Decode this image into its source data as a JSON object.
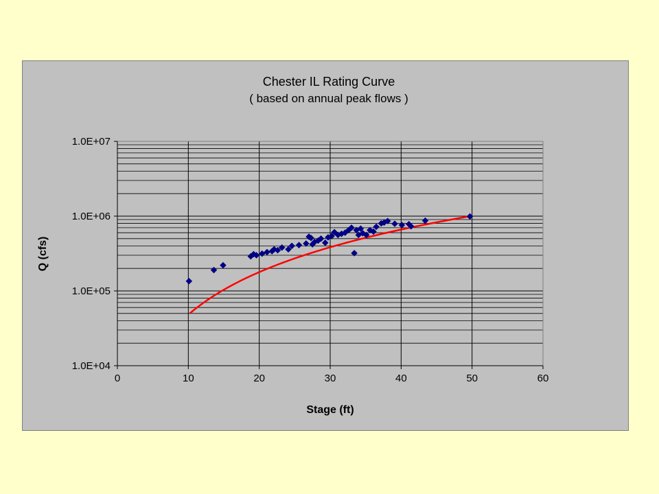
{
  "chart_data": {
    "type": "scatter",
    "title": "Chester IL Rating Curve",
    "subtitle": "( based on annual peak flows )",
    "xlabel": "Stage (ft)",
    "ylabel": "Q (cfs)",
    "xlim": [
      0,
      60
    ],
    "ylim": [
      10000,
      10000000
    ],
    "yscale": "log",
    "x_ticks": [
      0,
      10,
      20,
      30,
      40,
      50,
      60
    ],
    "x_tick_labels": [
      "0",
      "10",
      "20",
      "30",
      "40",
      "50",
      "60"
    ],
    "y_ticks": [
      10000,
      100000,
      1000000,
      10000000
    ],
    "y_tick_labels": [
      "1.0E+04",
      "1.0E+05",
      "1.0E+06",
      "1.0E+07"
    ],
    "grid": true,
    "legend": "none",
    "series": [
      {
        "type": "scatter",
        "color": "#00008B",
        "marker": "diamond",
        "points": [
          [
            10.1,
            135000
          ],
          [
            13.6,
            190000
          ],
          [
            14.9,
            220000
          ],
          [
            18.8,
            290000
          ],
          [
            19.2,
            310000
          ],
          [
            19.6,
            300000
          ],
          [
            20.4,
            315000
          ],
          [
            21.1,
            330000
          ],
          [
            21.8,
            340000
          ],
          [
            22.1,
            360000
          ],
          [
            22.6,
            350000
          ],
          [
            23.2,
            380000
          ],
          [
            24.1,
            360000
          ],
          [
            24.6,
            400000
          ],
          [
            25.6,
            410000
          ],
          [
            26.6,
            430000
          ],
          [
            27.0,
            530000
          ],
          [
            27.3,
            510000
          ],
          [
            27.5,
            420000
          ],
          [
            27.8,
            450000
          ],
          [
            28.3,
            470000
          ],
          [
            28.7,
            500000
          ],
          [
            29.3,
            440000
          ],
          [
            29.7,
            520000
          ],
          [
            30.2,
            540000
          ],
          [
            30.6,
            610000
          ],
          [
            31.1,
            560000
          ],
          [
            31.6,
            580000
          ],
          [
            32.1,
            600000
          ],
          [
            32.6,
            650000
          ],
          [
            33.0,
            700000
          ],
          [
            33.4,
            320000
          ],
          [
            33.7,
            650000
          ],
          [
            34.0,
            560000
          ],
          [
            34.3,
            680000
          ],
          [
            34.6,
            590000
          ],
          [
            35.1,
            560000
          ],
          [
            35.6,
            650000
          ],
          [
            36.1,
            620000
          ],
          [
            36.5,
            720000
          ],
          [
            37.2,
            800000
          ],
          [
            37.6,
            820000
          ],
          [
            38.1,
            860000
          ],
          [
            39.1,
            790000
          ],
          [
            40.1,
            760000
          ],
          [
            41.1,
            780000
          ],
          [
            41.4,
            730000
          ],
          [
            43.4,
            870000
          ],
          [
            49.7,
            990000
          ]
        ]
      },
      {
        "type": "line",
        "color": "#FF0000",
        "fit": "power",
        "coefficient": 620,
        "exponent": 1.89,
        "x_range": [
          10.2,
          49.7
        ]
      }
    ]
  }
}
